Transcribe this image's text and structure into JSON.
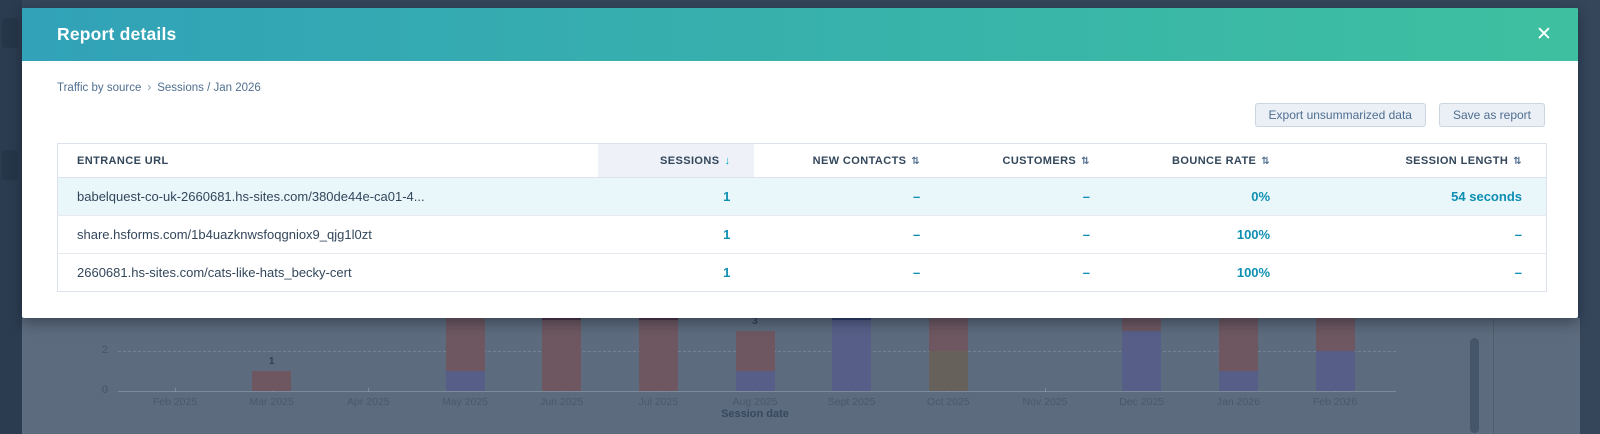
{
  "modal": {
    "title": "Report details",
    "close_icon": "✕",
    "breadcrumb": {
      "parent": "Traffic by source",
      "separator": "›",
      "current": "Sessions / Jan 2026"
    },
    "actions": {
      "export_label": "Export unsummarized data",
      "save_label": "Save as report"
    }
  },
  "table": {
    "columns": [
      {
        "label": "ENTRANCE URL",
        "sort_icon": "",
        "sorted": false
      },
      {
        "label": "SESSIONS",
        "sort_icon": "↓",
        "sorted": true
      },
      {
        "label": "NEW CONTACTS",
        "sort_icon": "⇅",
        "sorted": false
      },
      {
        "label": "CUSTOMERS",
        "sort_icon": "⇅",
        "sorted": false
      },
      {
        "label": "BOUNCE RATE",
        "sort_icon": "⇅",
        "sorted": false
      },
      {
        "label": "SESSION LENGTH",
        "sort_icon": "⇅",
        "sorted": false
      }
    ],
    "rows": [
      {
        "entrance_url": "babelquest-co-uk-2660681.hs-sites.com/380de44e-ca01-4...",
        "sessions": "1",
        "new_contacts": "–",
        "customers": "–",
        "bounce_rate": "0%",
        "session_length": "54 seconds"
      },
      {
        "entrance_url": "share.hsforms.com/1b4uazknwsfoqgniox9_qjg1l0zt",
        "sessions": "1",
        "new_contacts": "–",
        "customers": "–",
        "bounce_rate": "100%",
        "session_length": "–"
      },
      {
        "entrance_url": "2660681.hs-sites.com/cats-like-hats_becky-cert",
        "sessions": "1",
        "new_contacts": "–",
        "customers": "–",
        "bounce_rate": "100%",
        "session_length": "–"
      }
    ]
  },
  "chart_data": {
    "type": "bar",
    "stacked": true,
    "xlabel": "Session date",
    "visible_y_ticks": {
      "zero": "0",
      "two": "2"
    },
    "ylim_visible": [
      0,
      3.65
    ],
    "grid": true,
    "note": "background chart partially hidden behind modal; tall bars are clipped at the modal edge",
    "categories": [
      "Feb 2025",
      "Mar 2025",
      "Apr 2025",
      "May 2025",
      "Jun 2025",
      "Jul 2025",
      "Aug 2025",
      "Sept 2025",
      "Oct 2025",
      "Nov 2025",
      "Dec 2025",
      "Jan 2026",
      "Feb 2026"
    ],
    "bars": [
      {
        "category": "Feb 2025",
        "segments": [],
        "label": ""
      },
      {
        "category": "Mar 2025",
        "segments": [
          {
            "color": "red",
            "value": 1
          }
        ],
        "label": "1"
      },
      {
        "category": "Apr 2025",
        "segments": [],
        "label": ""
      },
      {
        "category": "May 2025",
        "segments": [
          {
            "color": "purple",
            "value": 1
          },
          {
            "color": "red",
            "value": 2.7
          }
        ],
        "label": ""
      },
      {
        "category": "Jun 2025",
        "segments": [
          {
            "color": "red",
            "value": 3.55
          },
          {
            "color": "maroon",
            "value": 0.15
          }
        ],
        "label": ""
      },
      {
        "category": "Jul 2025",
        "segments": [
          {
            "color": "red",
            "value": 3.55
          },
          {
            "color": "maroon",
            "value": 0.15
          }
        ],
        "label": ""
      },
      {
        "category": "Aug 2025",
        "segments": [
          {
            "color": "purple",
            "value": 1
          },
          {
            "color": "red",
            "value": 2
          }
        ],
        "label": "3"
      },
      {
        "category": "Sept 2025",
        "segments": [
          {
            "color": "purple",
            "value": 3.55
          },
          {
            "color": "navy",
            "value": 0.15
          }
        ],
        "label": ""
      },
      {
        "category": "Oct 2025",
        "segments": [
          {
            "color": "olive",
            "value": 2
          },
          {
            "color": "red",
            "value": 1.7
          }
        ],
        "label": ""
      },
      {
        "category": "Nov 2025",
        "segments": [],
        "label": ""
      },
      {
        "category": "Dec 2025",
        "segments": [
          {
            "color": "purple",
            "value": 3
          },
          {
            "color": "red",
            "value": 0.7
          }
        ],
        "label": ""
      },
      {
        "category": "Jan 2026",
        "segments": [
          {
            "color": "purple",
            "value": 1
          },
          {
            "color": "red",
            "value": 2.7
          }
        ],
        "label": ""
      },
      {
        "category": "Feb 2026",
        "segments": [
          {
            "color": "purple",
            "value": 2
          },
          {
            "color": "red",
            "value": 1.7
          }
        ],
        "label": ""
      }
    ],
    "colors": {
      "red": "#6e5760",
      "purple": "#575f88",
      "olive": "#66615a",
      "maroon": "#4b3144",
      "navy": "#2c3a68"
    }
  },
  "colors": {
    "header_gradient_start": "#31a2b8",
    "header_gradient_end": "#3ec0a0",
    "accent_sort": "#00a4bd",
    "value_link": "#0e8fb2",
    "row_highlight": "#e9f7fb"
  }
}
